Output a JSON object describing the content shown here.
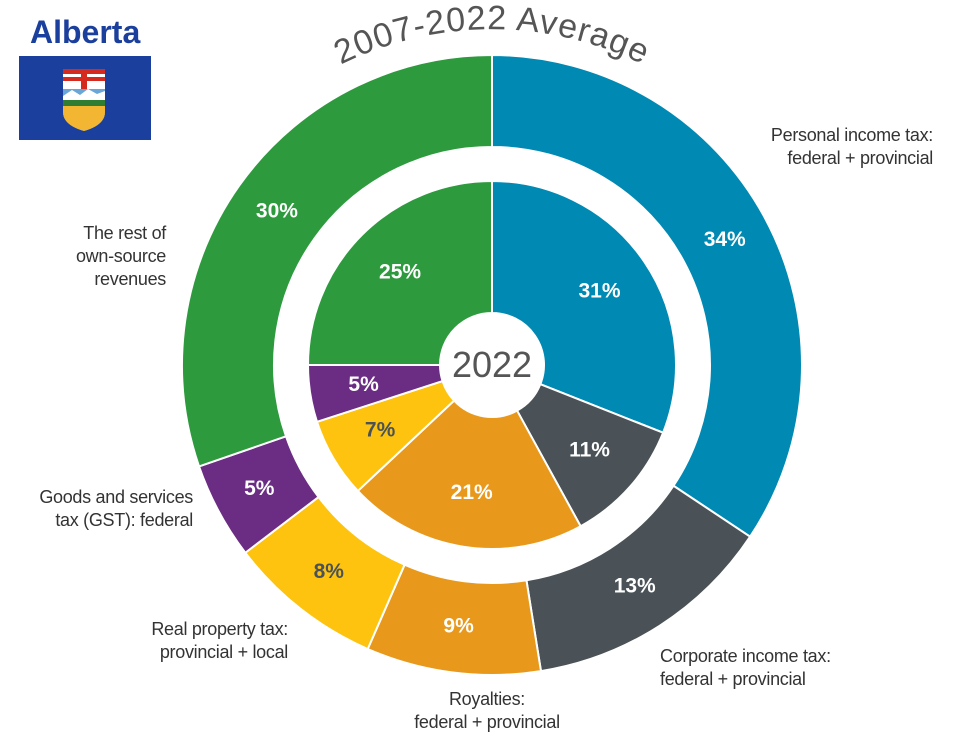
{
  "title": "Alberta",
  "chart_data": {
    "type": "donut",
    "categories": [
      "Personal income tax:\nfederal + provincial",
      "Corporate income tax:\nfederal + provincial",
      "Royalties:\nfederal + provincial",
      "Real property tax:\nprovincial + local",
      "Goods and services\ntax (GST): federal",
      "The rest of\nown-source\nrevenues"
    ],
    "colors": [
      "#0089b3",
      "#4a5257",
      "#e8991c",
      "#fdc30f",
      "#6b2c83",
      "#2e9a3e"
    ],
    "series": [
      {
        "name": "2007-2022 Average",
        "values": [
          34,
          13,
          9,
          8,
          5,
          30
        ],
        "value_labels": [
          "34%",
          "13%",
          "9%",
          "8%",
          "5%",
          "30%"
        ]
      },
      {
        "name": "2022",
        "values": [
          31,
          11,
          21,
          7,
          5,
          25
        ],
        "value_labels": [
          "31%",
          "11%",
          "21%",
          "7%",
          "5%",
          "25%"
        ]
      }
    ]
  }
}
